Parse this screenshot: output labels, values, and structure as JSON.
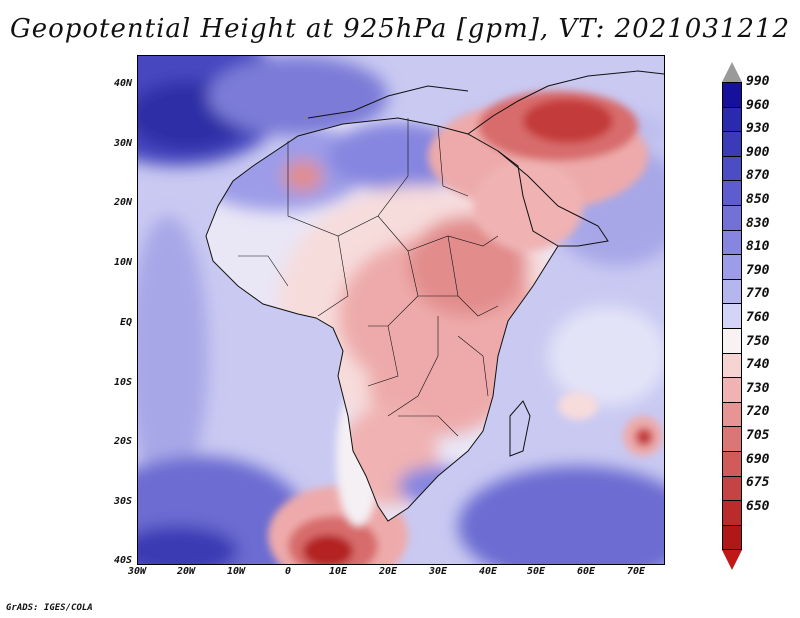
{
  "title": "Geopotential Height at 925hPa [gpm], VT: 2021031212",
  "credit": "GrADS: IGES/COLA",
  "lat_labels": [
    "40N",
    "30N",
    "20N",
    "10N",
    "EQ",
    "10S",
    "20S",
    "30S",
    "40S"
  ],
  "lon_labels": [
    "30W",
    "20W",
    "10W",
    "0",
    "10E",
    "20E",
    "30E",
    "40E",
    "50E",
    "60E",
    "70E"
  ],
  "colorbar": {
    "labels": [
      "990",
      "960",
      "930",
      "900",
      "870",
      "850",
      "830",
      "810",
      "790",
      "770",
      "760",
      "750",
      "740",
      "730",
      "720",
      "705",
      "690",
      "675",
      "650"
    ],
    "colors": [
      "#9a9a9a",
      "#15119d",
      "#2a2aae",
      "#3b3bb8",
      "#4c4cc4",
      "#5d5dcf",
      "#7171d8",
      "#8686e0",
      "#9c9ce8",
      "#b6b6ef",
      "#d4d4f6",
      "#f8f2f2",
      "#f7d4d4",
      "#f0b2b2",
      "#e69494",
      "#dc7575",
      "#d15a5a",
      "#c64343",
      "#bb2b2b",
      "#b01818",
      "#c01818"
    ],
    "over_color": "#9a9a9a",
    "under_color": "#c01818"
  },
  "map_colors": {
    "ocean_base": "#c9c9f2",
    "ocean_deep": "#5a5ad0",
    "land_light": "#f7dcdc",
    "land_mid": "#eeaaaa",
    "land_dark": "#d86c6c",
    "hot_core": "#c43a3a",
    "white_band": "#f4f0f4",
    "coast": "#111111"
  }
}
